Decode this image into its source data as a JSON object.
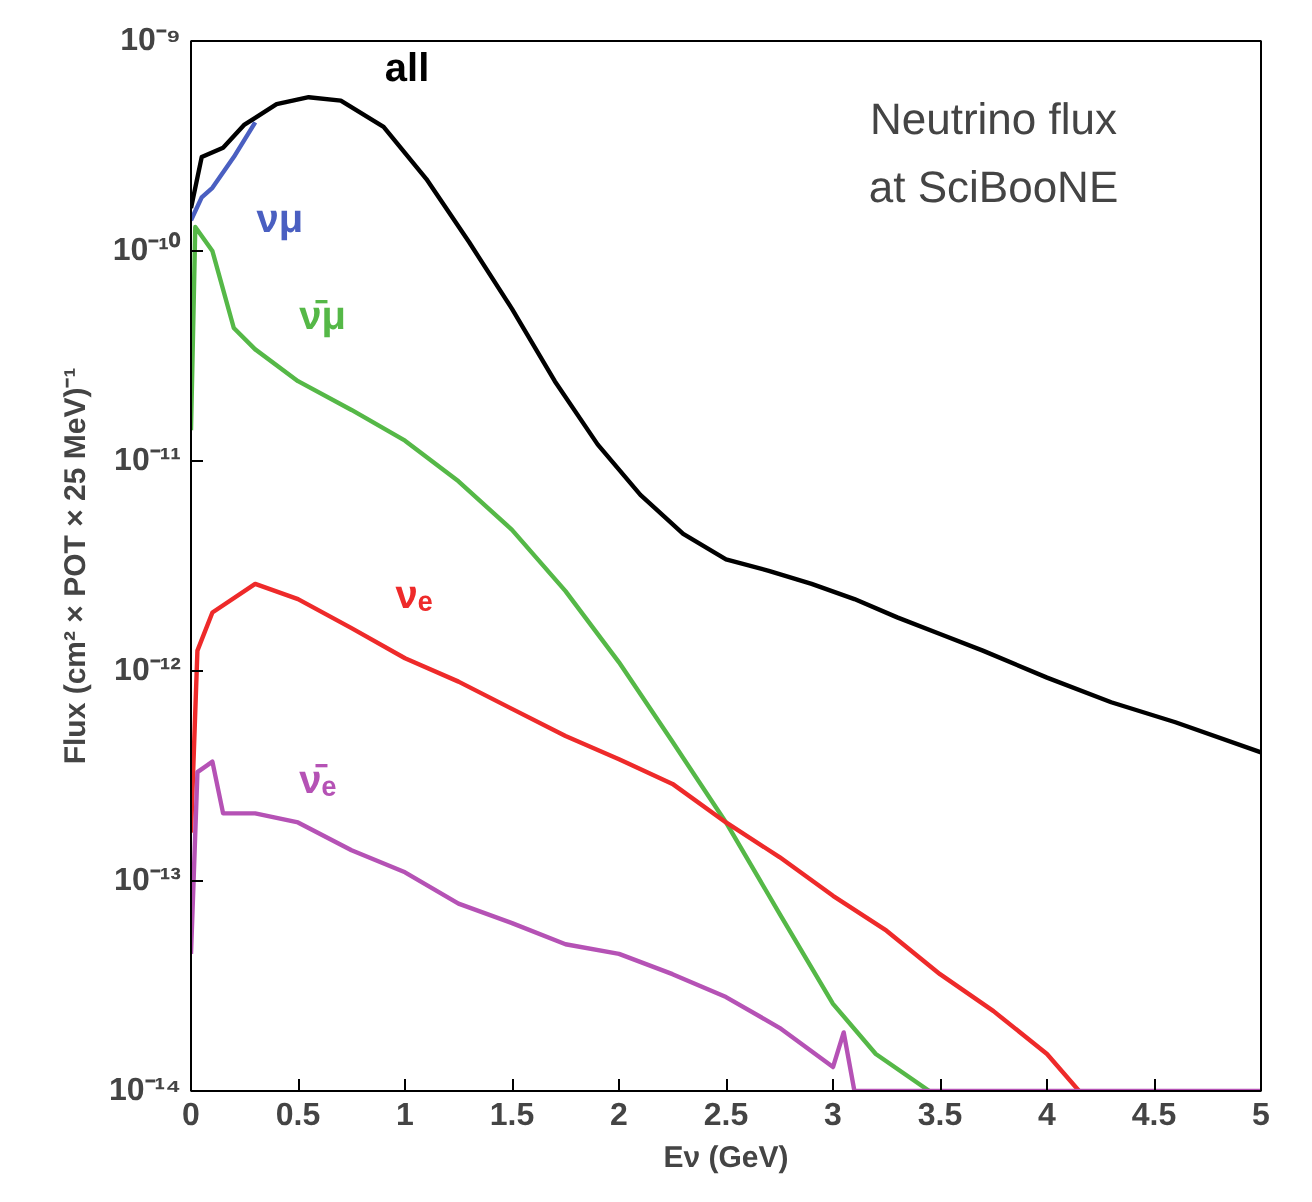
{
  "chart_data": {
    "type": "line",
    "xlabel": "Eν (GeV)",
    "ylabel": "Flux (cm² × POT × 25 MeV)⁻¹",
    "log": "y",
    "grid": false,
    "marker": "none",
    "line_style": "solid",
    "annotations": [
      "Neutrino flux at SciBooNE"
    ],
    "xlim": [
      0,
      5
    ],
    "ylim": [
      1e-14,
      1e-09
    ],
    "xticks": [
      0,
      0.5,
      1,
      1.5,
      2,
      2.5,
      3,
      3.5,
      4,
      4.5,
      5
    ],
    "yticks": [
      {
        "value": 1e-14,
        "label": "10⁻¹⁴"
      },
      {
        "value": 1e-13,
        "label": "10⁻¹³"
      },
      {
        "value": 1e-12,
        "label": "10⁻¹²"
      },
      {
        "value": 1e-11,
        "label": "10⁻¹¹"
      },
      {
        "value": 1e-10,
        "label": "10⁻¹⁰"
      },
      {
        "value": 1e-09,
        "label": "10⁻⁹"
      }
    ],
    "series": [
      {
        "name": "νμ",
        "color": "#4a5fc1",
        "x": [
          0,
          0.05,
          0.1,
          0.2,
          0.3
        ],
        "values": [
          1.4e-10,
          1.8e-10,
          2e-10,
          2.8e-10,
          4.1e-10
        ]
      },
      {
        "name": "ν̄μ",
        "color": "#55b847",
        "x": [
          0,
          0.02,
          0.1,
          0.2,
          0.3,
          0.5,
          0.75,
          1.0,
          1.25,
          1.5,
          1.75,
          2.0,
          2.25,
          2.5,
          2.75,
          3.0,
          3.2,
          3.45
        ],
        "values": [
          1.4e-11,
          1.3e-10,
          1e-10,
          4.3e-11,
          3.4e-11,
          2.4e-11,
          1.75e-11,
          1.25e-11,
          8e-12,
          4.7e-12,
          2.4e-12,
          1.1e-12,
          4.6e-13,
          1.9e-13,
          7e-14,
          2.6e-14,
          1.5e-14,
          1e-14
        ]
      },
      {
        "name": "νₑ",
        "color": "#ee2a2a",
        "x": [
          0,
          0.03,
          0.1,
          0.3,
          0.5,
          0.75,
          1.0,
          1.25,
          1.5,
          1.75,
          2.0,
          2.25,
          2.5,
          2.75,
          3.0,
          3.25,
          3.5,
          3.75,
          4.0,
          4.15
        ],
        "values": [
          1.7e-13,
          1.25e-12,
          1.9e-12,
          2.6e-12,
          2.2e-12,
          1.6e-12,
          1.15e-12,
          8.9e-13,
          6.6e-13,
          4.9e-13,
          3.8e-13,
          2.9e-13,
          1.9e-13,
          1.3e-13,
          8.5e-14,
          5.8e-14,
          3.6e-14,
          2.4e-14,
          1.5e-14,
          1e-14
        ]
      },
      {
        "name": "ν̄ₑ",
        "color": "#b552b5",
        "x": [
          0,
          0.03,
          0.1,
          0.15,
          0.3,
          0.5,
          0.75,
          1.0,
          1.25,
          1.5,
          1.75,
          2.0,
          2.25,
          2.5,
          2.75,
          3.0,
          3.05,
          3.1,
          5.0
        ],
        "values": [
          4.5e-14,
          3.3e-13,
          3.7e-13,
          2.1e-13,
          2.1e-13,
          1.9e-13,
          1.4e-13,
          1.1e-13,
          7.8e-14,
          6.3e-14,
          5e-14,
          4.5e-14,
          3.6e-14,
          2.8e-14,
          2e-14,
          1.3e-14,
          1.9e-14,
          1e-14,
          1e-14
        ]
      },
      {
        "name": "all",
        "color": "#000000",
        "x": [
          0,
          0.05,
          0.15,
          0.25,
          0.4,
          0.55,
          0.7,
          0.9,
          1.1,
          1.3,
          1.5,
          1.7,
          1.9,
          2.1,
          2.3,
          2.5,
          2.7,
          2.9,
          3.1,
          3.3,
          3.5,
          3.7,
          4.0,
          4.3,
          4.6,
          5.0
        ],
        "values": [
          1.6e-10,
          2.8e-10,
          3.1e-10,
          4e-10,
          5e-10,
          5.4e-10,
          5.2e-10,
          3.9e-10,
          2.2e-10,
          1.1e-10,
          5.3e-11,
          2.4e-11,
          1.2e-11,
          6.9e-12,
          4.5e-12,
          3.4e-12,
          3e-12,
          2.6e-12,
          2.2e-12,
          1.8e-12,
          1.5e-12,
          1.25e-12,
          9.3e-13,
          7.1e-13,
          5.7e-13,
          4.1e-13
        ]
      }
    ]
  }
}
